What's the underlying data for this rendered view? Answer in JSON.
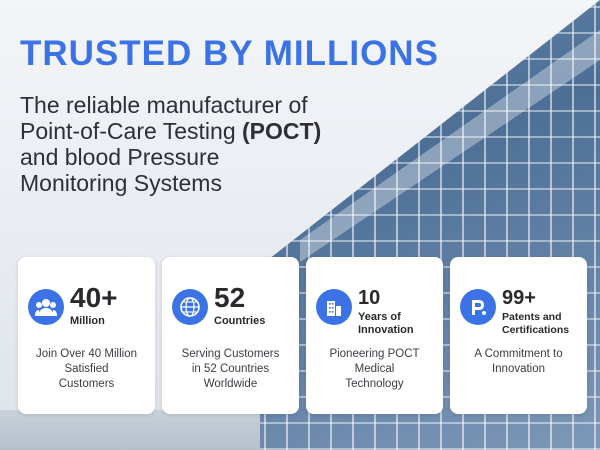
{
  "headline": "TRUSTED BY MILLIONS",
  "subhead": {
    "line1": "The reliable manufacturer of",
    "line2_pre": "Point-of-Care Testing ",
    "line2_bold": "(POCT)",
    "line3": "and blood Pressure",
    "line4": "Monitoring Systems"
  },
  "stats": [
    {
      "icon": "people-icon",
      "value": "40+",
      "unit_lines": [
        "Million"
      ],
      "desc_lines": [
        "Join Over 40 Million",
        "Satisfied",
        "Customers"
      ]
    },
    {
      "icon": "globe-icon",
      "value": "52",
      "unit_lines": [
        "Countries"
      ],
      "desc_lines": [
        "Serving Customers",
        "in 52 Countries",
        "Worldwide"
      ]
    },
    {
      "icon": "building-icon",
      "value": "10",
      "unit_lines": [
        "Years of",
        "Innovation"
      ],
      "desc_lines": [
        "Pioneering POCT",
        "Medical",
        "Technology"
      ]
    },
    {
      "icon": "patent-icon",
      "value": "99+",
      "unit_lines": [
        "Patents and",
        "Certifications"
      ],
      "desc_lines": [
        "A Commitment to",
        "Innovation"
      ]
    }
  ],
  "colors": {
    "accent": "#3b73e6",
    "text": "#2f2f35",
    "card": "#ffffff"
  }
}
